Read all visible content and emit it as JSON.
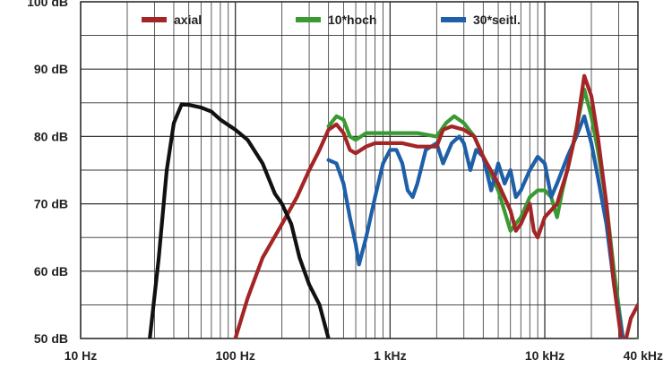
{
  "chart_data": {
    "type": "line",
    "title": "",
    "xlabel": "",
    "ylabel": "",
    "x_scale": "log",
    "xlim": [
      10,
      40000
    ],
    "ylim": [
      50,
      100
    ],
    "grid": true,
    "legend_position": "top",
    "x_ticks": [
      {
        "value": 10,
        "label": "10 Hz"
      },
      {
        "value": 100,
        "label": "100 Hz"
      },
      {
        "value": 1000,
        "label": "1 kHz"
      },
      {
        "value": 10000,
        "label": "10 kHz"
      },
      {
        "value": 40000,
        "label": "40 kHz"
      }
    ],
    "y_ticks": [
      {
        "value": 50,
        "label": "50 dB"
      },
      {
        "value": 60,
        "label": "60 dB"
      },
      {
        "value": 70,
        "label": "70 dB"
      },
      {
        "value": 80,
        "label": "80 dB"
      },
      {
        "value": 90,
        "label": "90 dB"
      },
      {
        "value": 100,
        "label": "100 dB"
      }
    ],
    "series": [
      {
        "name": "axial",
        "color": "#a32525",
        "points": [
          [
            100,
            50
          ],
          [
            120,
            56
          ],
          [
            150,
            62
          ],
          [
            200,
            67
          ],
          [
            250,
            71
          ],
          [
            300,
            75
          ],
          [
            350,
            78
          ],
          [
            400,
            81
          ],
          [
            450,
            81.8
          ],
          [
            500,
            80.5
          ],
          [
            550,
            78
          ],
          [
            600,
            77.5
          ],
          [
            700,
            78.5
          ],
          [
            800,
            79
          ],
          [
            1000,
            79
          ],
          [
            1200,
            79
          ],
          [
            1500,
            78.5
          ],
          [
            2000,
            78.5
          ],
          [
            2200,
            81
          ],
          [
            2500,
            81.5
          ],
          [
            3000,
            81
          ],
          [
            3500,
            80
          ],
          [
            4000,
            77
          ],
          [
            5000,
            73
          ],
          [
            6000,
            69
          ],
          [
            6500,
            66
          ],
          [
            7000,
            67
          ],
          [
            8000,
            70
          ],
          [
            8500,
            66
          ],
          [
            9000,
            65
          ],
          [
            10000,
            68
          ],
          [
            12000,
            70
          ],
          [
            14000,
            75
          ],
          [
            16000,
            81
          ],
          [
            18000,
            89
          ],
          [
            20000,
            86
          ],
          [
            22000,
            80
          ],
          [
            25000,
            70
          ],
          [
            28000,
            58
          ],
          [
            32000,
            48
          ],
          [
            36000,
            53
          ],
          [
            40000,
            55
          ]
        ]
      },
      {
        "name": "10*hoch",
        "color": "#3a9a32",
        "points": [
          [
            400,
            81.5
          ],
          [
            450,
            83
          ],
          [
            500,
            82.5
          ],
          [
            550,
            80
          ],
          [
            600,
            79.5
          ],
          [
            700,
            80.5
          ],
          [
            800,
            80.5
          ],
          [
            1000,
            80.5
          ],
          [
            1500,
            80.5
          ],
          [
            2000,
            80
          ],
          [
            2300,
            82
          ],
          [
            2600,
            83
          ],
          [
            3000,
            82
          ],
          [
            3500,
            80
          ],
          [
            4000,
            77
          ],
          [
            5000,
            72
          ],
          [
            6000,
            66
          ],
          [
            7000,
            68
          ],
          [
            8000,
            71
          ],
          [
            9000,
            72
          ],
          [
            10000,
            72
          ],
          [
            11000,
            71
          ],
          [
            12000,
            68
          ],
          [
            13000,
            72
          ],
          [
            15000,
            78
          ],
          [
            18000,
            87
          ],
          [
            20000,
            83
          ],
          [
            22000,
            78
          ],
          [
            25000,
            70
          ],
          [
            28000,
            60
          ],
          [
            32000,
            50
          ],
          [
            36000,
            46
          ],
          [
            40000,
            50
          ]
        ]
      },
      {
        "name": "30*seitl.",
        "color": "#1f5fa8",
        "points": [
          [
            400,
            76.5
          ],
          [
            450,
            76
          ],
          [
            500,
            73
          ],
          [
            550,
            68
          ],
          [
            600,
            64
          ],
          [
            630,
            61
          ],
          [
            700,
            65
          ],
          [
            800,
            71
          ],
          [
            900,
            76
          ],
          [
            1000,
            78
          ],
          [
            1100,
            78
          ],
          [
            1200,
            76
          ],
          [
            1300,
            72
          ],
          [
            1400,
            71
          ],
          [
            1500,
            73
          ],
          [
            1700,
            78
          ],
          [
            2000,
            79
          ],
          [
            2200,
            76
          ],
          [
            2500,
            79
          ],
          [
            2800,
            80
          ],
          [
            3000,
            79
          ],
          [
            3300,
            75
          ],
          [
            3600,
            78
          ],
          [
            4000,
            77
          ],
          [
            4500,
            72
          ],
          [
            5000,
            76
          ],
          [
            5500,
            73
          ],
          [
            6000,
            75
          ],
          [
            6500,
            71
          ],
          [
            7000,
            72
          ],
          [
            8000,
            75
          ],
          [
            9000,
            77
          ],
          [
            10000,
            76
          ],
          [
            11000,
            71
          ],
          [
            12000,
            73
          ],
          [
            14000,
            77
          ],
          [
            16000,
            80
          ],
          [
            18000,
            83
          ],
          [
            20000,
            79
          ],
          [
            22000,
            74
          ],
          [
            25000,
            67
          ],
          [
            28000,
            58
          ],
          [
            32000,
            50
          ]
        ]
      },
      {
        "color": "#111111",
        "points": [
          [
            28,
            50
          ],
          [
            32,
            62
          ],
          [
            36,
            75
          ],
          [
            40,
            82
          ],
          [
            45,
            84.8
          ],
          [
            50,
            84.7
          ],
          [
            60,
            84.3
          ],
          [
            70,
            83.7
          ],
          [
            80,
            82.5
          ],
          [
            100,
            81
          ],
          [
            120,
            79.5
          ],
          [
            150,
            76
          ],
          [
            180,
            71.5
          ],
          [
            200,
            70
          ],
          [
            230,
            67
          ],
          [
            260,
            62
          ],
          [
            300,
            58
          ],
          [
            350,
            55
          ],
          [
            400,
            50
          ]
        ]
      }
    ]
  }
}
